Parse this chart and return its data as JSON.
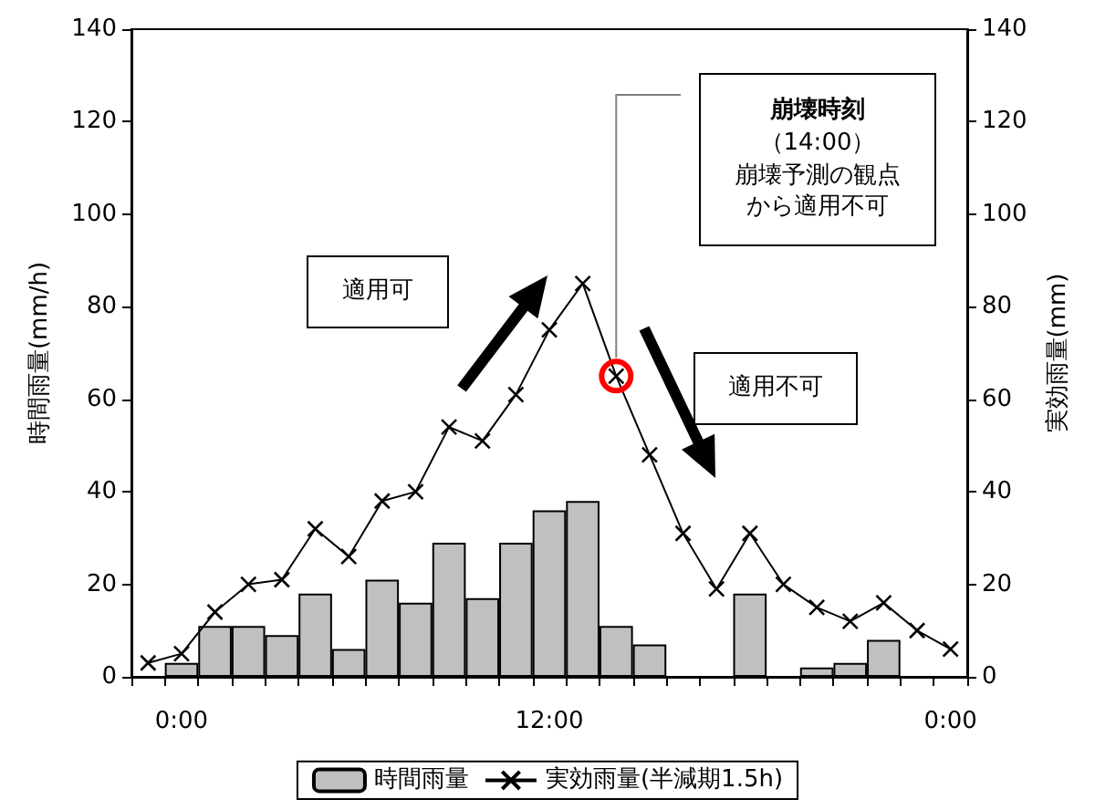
{
  "chart_data": {
    "type": "bar",
    "categories": [
      null,
      "0:00",
      null,
      null,
      null,
      null,
      null,
      null,
      null,
      null,
      null,
      null,
      "12:00",
      null,
      null,
      null,
      null,
      null,
      null,
      null,
      null,
      null,
      null,
      null,
      "0:00"
    ],
    "series": [
      {
        "name": "時間雨量",
        "color": "#c0c0c0",
        "values": [
          0,
          3,
          11,
          11,
          9,
          18,
          6,
          21,
          16,
          29,
          17,
          29,
          36,
          38,
          11,
          7,
          0,
          0,
          18,
          0,
          2,
          3,
          8,
          0,
          0
        ]
      },
      {
        "name": "実効雨量(半減期1.5h)",
        "type": "line",
        "axis": "y2",
        "color": "#000000",
        "marker": "cross",
        "values": [
          3,
          5,
          14,
          20,
          21,
          32,
          26,
          38,
          40,
          54,
          51,
          61,
          75,
          85,
          65,
          48,
          31,
          19,
          31,
          20,
          15,
          12,
          16,
          10,
          6
        ]
      }
    ],
    "ylabel": "時間雨量(mm/h)",
    "y2label": "実効雨量(mm)",
    "ylim": [
      0,
      140
    ],
    "yticks": [
      0,
      20,
      40,
      60,
      80,
      100,
      120,
      140
    ],
    "y2lim": [
      0,
      140
    ],
    "y2ticks": [
      0,
      20,
      40,
      60,
      80,
      100,
      120,
      140
    ],
    "grid": false,
    "legend": "bottom",
    "annotations": [
      "崩壊時刻",
      "（14:00）",
      "崩壊予測の観点から適用不可",
      "適用可",
      "適用不可"
    ]
  }
}
